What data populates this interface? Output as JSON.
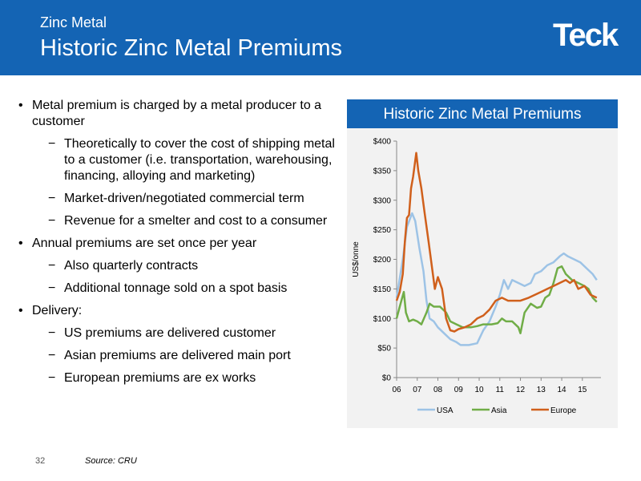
{
  "header": {
    "subtitle": "Zinc Metal",
    "title": "Historic Zinc Metal Premiums",
    "logo": "Teck"
  },
  "bullets": [
    {
      "level": 1,
      "text": "Metal premium is charged by a metal producer to a customer"
    },
    {
      "level": 2,
      "text": "Theoretically to cover the cost of shipping metal to a customer (i.e. transportation, warehousing, financing, alloying and marketing)"
    },
    {
      "level": 2,
      "text": "Market-driven/negotiated commercial term"
    },
    {
      "level": 2,
      "text": "Revenue for a smelter and cost to a consumer"
    },
    {
      "level": 1,
      "text": "Annual premiums are set once per year"
    },
    {
      "level": 2,
      "text": "Also quarterly contracts"
    },
    {
      "level": 2,
      "text": "Additional tonnage sold on a spot basis"
    },
    {
      "level": 1,
      "text": "Delivery:"
    },
    {
      "level": 2,
      "text": "US premiums are delivered customer"
    },
    {
      "level": 2,
      "text": "Asian premiums are delivered main port"
    },
    {
      "level": 2,
      "text": "European premiums are ex works"
    }
  ],
  "footer": {
    "page_number": "32",
    "source": "Source:  CRU"
  },
  "chart_data": {
    "type": "line",
    "title": "Historic Zinc Metal Premiums",
    "xlabel": "",
    "ylabel": "US$/onne",
    "xlim": [
      2006,
      2015.9
    ],
    "ylim": [
      0,
      400
    ],
    "x_ticks": [
      "06",
      "07",
      "08",
      "09",
      "10",
      "11",
      "12",
      "13",
      "14",
      "15"
    ],
    "y_ticks": [
      "$0",
      "$50",
      "$100",
      "$150",
      "$200",
      "$250",
      "$300",
      "$350",
      "$400"
    ],
    "grid": false,
    "legend": "bottom",
    "series": [
      {
        "name": "USA",
        "color": "#9dc3e6",
        "points": [
          [
            2006.0,
            135
          ],
          [
            2006.3,
            200
          ],
          [
            2006.5,
            255
          ],
          [
            2006.75,
            278
          ],
          [
            2006.9,
            265
          ],
          [
            2007.1,
            220
          ],
          [
            2007.3,
            180
          ],
          [
            2007.45,
            130
          ],
          [
            2007.6,
            100
          ],
          [
            2007.8,
            95
          ],
          [
            2008.0,
            85
          ],
          [
            2008.3,
            75
          ],
          [
            2008.6,
            65
          ],
          [
            2008.9,
            60
          ],
          [
            2009.1,
            55
          ],
          [
            2009.5,
            55
          ],
          [
            2009.9,
            58
          ],
          [
            2010.2,
            80
          ],
          [
            2010.5,
            95
          ],
          [
            2010.8,
            120
          ],
          [
            2011.0,
            140
          ],
          [
            2011.2,
            165
          ],
          [
            2011.4,
            150
          ],
          [
            2011.6,
            165
          ],
          [
            2011.9,
            160
          ],
          [
            2012.2,
            155
          ],
          [
            2012.5,
            160
          ],
          [
            2012.7,
            175
          ],
          [
            2013.0,
            180
          ],
          [
            2013.3,
            190
          ],
          [
            2013.6,
            195
          ],
          [
            2013.9,
            205
          ],
          [
            2014.1,
            210
          ],
          [
            2014.3,
            205
          ],
          [
            2014.6,
            200
          ],
          [
            2014.9,
            195
          ],
          [
            2015.2,
            185
          ],
          [
            2015.5,
            175
          ],
          [
            2015.7,
            165
          ]
        ]
      },
      {
        "name": "Asia",
        "color": "#70ad47",
        "points": [
          [
            2006.0,
            100
          ],
          [
            2006.15,
            120
          ],
          [
            2006.35,
            145
          ],
          [
            2006.45,
            110
          ],
          [
            2006.6,
            95
          ],
          [
            2006.8,
            98
          ],
          [
            2007.0,
            95
          ],
          [
            2007.2,
            90
          ],
          [
            2007.45,
            110
          ],
          [
            2007.6,
            125
          ],
          [
            2007.8,
            120
          ],
          [
            2008.1,
            120
          ],
          [
            2008.4,
            110
          ],
          [
            2008.6,
            95
          ],
          [
            2008.9,
            90
          ],
          [
            2009.2,
            85
          ],
          [
            2009.6,
            85
          ],
          [
            2009.9,
            87
          ],
          [
            2010.2,
            90
          ],
          [
            2010.6,
            90
          ],
          [
            2010.9,
            92
          ],
          [
            2011.1,
            100
          ],
          [
            2011.3,
            95
          ],
          [
            2011.6,
            95
          ],
          [
            2011.9,
            85
          ],
          [
            2012.0,
            75
          ],
          [
            2012.2,
            110
          ],
          [
            2012.5,
            125
          ],
          [
            2012.8,
            118
          ],
          [
            2013.0,
            120
          ],
          [
            2013.2,
            135
          ],
          [
            2013.4,
            140
          ],
          [
            2013.6,
            160
          ],
          [
            2013.8,
            185
          ],
          [
            2014.0,
            188
          ],
          [
            2014.2,
            175
          ],
          [
            2014.5,
            165
          ],
          [
            2014.8,
            160
          ],
          [
            2015.1,
            155
          ],
          [
            2015.3,
            150
          ],
          [
            2015.5,
            135
          ],
          [
            2015.7,
            128
          ]
        ]
      },
      {
        "name": "Europe",
        "color": "#d0601c",
        "points": [
          [
            2006.0,
            130
          ],
          [
            2006.15,
            145
          ],
          [
            2006.3,
            175
          ],
          [
            2006.4,
            230
          ],
          [
            2006.5,
            270
          ],
          [
            2006.6,
            275
          ],
          [
            2006.7,
            320
          ],
          [
            2006.8,
            340
          ],
          [
            2006.95,
            380
          ],
          [
            2007.05,
            350
          ],
          [
            2007.2,
            320
          ],
          [
            2007.35,
            280
          ],
          [
            2007.55,
            230
          ],
          [
            2007.7,
            190
          ],
          [
            2007.85,
            150
          ],
          [
            2008.0,
            170
          ],
          [
            2008.2,
            150
          ],
          [
            2008.4,
            100
          ],
          [
            2008.6,
            80
          ],
          [
            2008.8,
            78
          ],
          [
            2009.0,
            82
          ],
          [
            2009.3,
            85
          ],
          [
            2009.6,
            90
          ],
          [
            2009.9,
            100
          ],
          [
            2010.2,
            105
          ],
          [
            2010.5,
            115
          ],
          [
            2010.8,
            130
          ],
          [
            2011.1,
            135
          ],
          [
            2011.4,
            130
          ],
          [
            2011.7,
            130
          ],
          [
            2012.0,
            130
          ],
          [
            2012.4,
            135
          ],
          [
            2012.7,
            140
          ],
          [
            2013.0,
            145
          ],
          [
            2013.3,
            150
          ],
          [
            2013.6,
            155
          ],
          [
            2013.9,
            160
          ],
          [
            2014.2,
            165
          ],
          [
            2014.4,
            160
          ],
          [
            2014.6,
            165
          ],
          [
            2014.8,
            150
          ],
          [
            2015.1,
            155
          ],
          [
            2015.4,
            140
          ],
          [
            2015.7,
            135
          ]
        ]
      }
    ]
  }
}
